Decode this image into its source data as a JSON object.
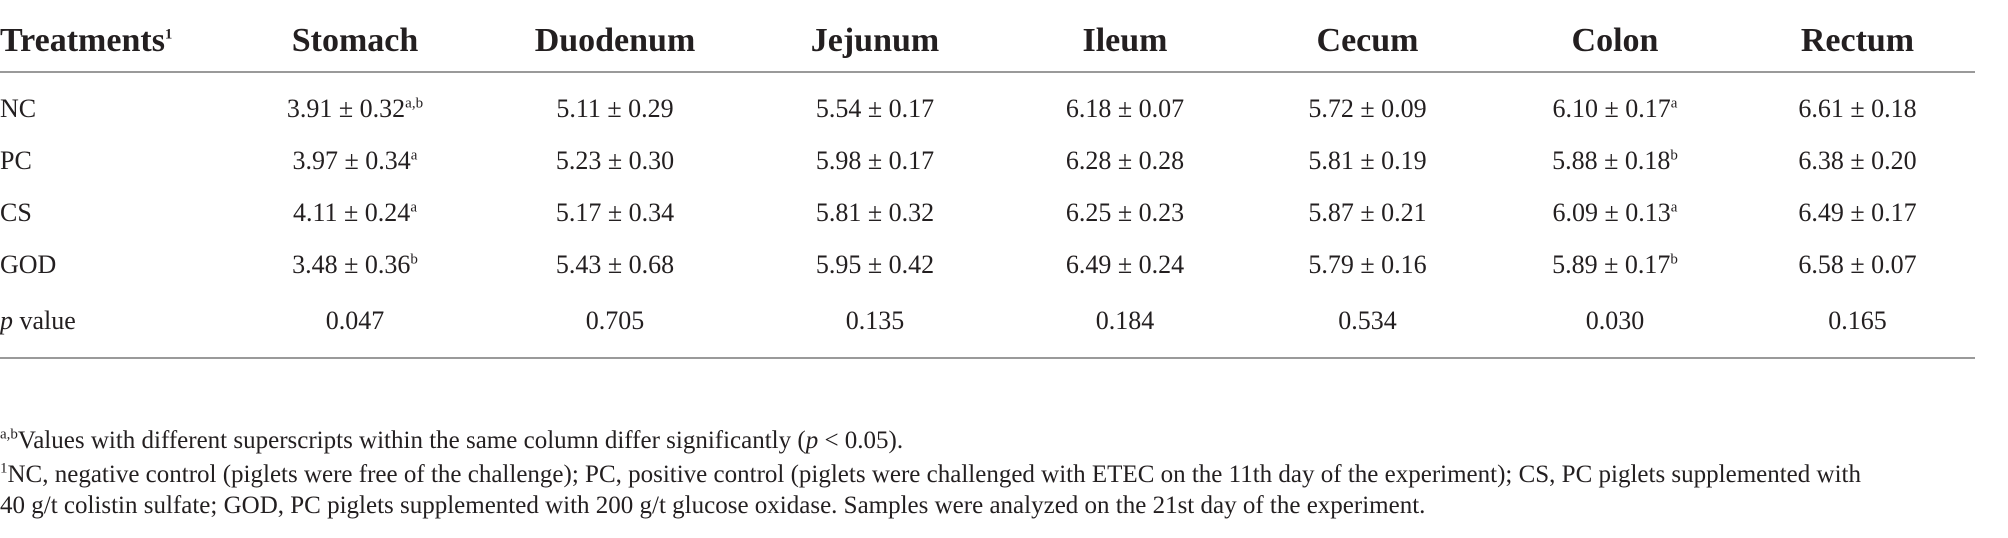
{
  "table": {
    "headers": [
      {
        "text": "Treatments",
        "sup": "1"
      },
      {
        "text": "Stomach",
        "sup": ""
      },
      {
        "text": "Duodenum",
        "sup": ""
      },
      {
        "text": "Jejunum",
        "sup": ""
      },
      {
        "text": "Ileum",
        "sup": ""
      },
      {
        "text": "Cecum",
        "sup": ""
      },
      {
        "text": "Colon",
        "sup": ""
      },
      {
        "text": "Rectum",
        "sup": ""
      }
    ],
    "rows": [
      {
        "label": "NC",
        "label_italic": "",
        "label_rest": "",
        "cells": [
          {
            "v": "3.91 ± 0.32",
            "s": "a,b"
          },
          {
            "v": "5.11 ± 0.29",
            "s": ""
          },
          {
            "v": "5.54 ± 0.17",
            "s": ""
          },
          {
            "v": "6.18 ± 0.07",
            "s": ""
          },
          {
            "v": "5.72 ± 0.09",
            "s": ""
          },
          {
            "v": "6.10 ± 0.17",
            "s": "a"
          },
          {
            "v": "6.61 ± 0.18",
            "s": ""
          }
        ]
      },
      {
        "label": "PC",
        "label_italic": "",
        "label_rest": "",
        "cells": [
          {
            "v": "3.97 ± 0.34",
            "s": "a"
          },
          {
            "v": "5.23 ± 0.30",
            "s": ""
          },
          {
            "v": "5.98 ± 0.17",
            "s": ""
          },
          {
            "v": "6.28 ± 0.28",
            "s": ""
          },
          {
            "v": "5.81 ± 0.19",
            "s": ""
          },
          {
            "v": "5.88 ± 0.18",
            "s": "b"
          },
          {
            "v": "6.38 ± 0.20",
            "s": ""
          }
        ]
      },
      {
        "label": "CS",
        "label_italic": "",
        "label_rest": "",
        "cells": [
          {
            "v": "4.11 ± 0.24",
            "s": "a"
          },
          {
            "v": "5.17 ± 0.34",
            "s": ""
          },
          {
            "v": "5.81 ± 0.32",
            "s": ""
          },
          {
            "v": "6.25 ± 0.23",
            "s": ""
          },
          {
            "v": "5.87 ± 0.21",
            "s": ""
          },
          {
            "v": "6.09 ± 0.13",
            "s": "a"
          },
          {
            "v": "6.49 ± 0.17",
            "s": ""
          }
        ]
      },
      {
        "label": "GOD",
        "label_italic": "",
        "label_rest": "",
        "cells": [
          {
            "v": "3.48 ± 0.36",
            "s": "b"
          },
          {
            "v": "5.43 ± 0.68",
            "s": ""
          },
          {
            "v": "5.95 ± 0.42",
            "s": ""
          },
          {
            "v": "6.49 ± 0.24",
            "s": ""
          },
          {
            "v": "5.79 ± 0.16",
            "s": ""
          },
          {
            "v": "5.89 ± 0.17",
            "s": "b"
          },
          {
            "v": "6.58 ± 0.07",
            "s": ""
          }
        ]
      },
      {
        "label": "",
        "label_italic": "p",
        "label_rest": " value",
        "cells": [
          {
            "v": "0.047",
            "s": ""
          },
          {
            "v": "0.705",
            "s": ""
          },
          {
            "v": "0.135",
            "s": ""
          },
          {
            "v": "0.184",
            "s": ""
          },
          {
            "v": "0.534",
            "s": ""
          },
          {
            "v": "0.030",
            "s": ""
          },
          {
            "v": "0.165",
            "s": ""
          }
        ]
      }
    ]
  },
  "footnotes": {
    "fn1": {
      "sup": "a,b",
      "text_before": "Values with different superscripts within the same column differ significantly (",
      "italic": "p",
      "text_after": " < 0.05)."
    },
    "fn2": {
      "sup": "1",
      "line1": "NC, negative control (piglets were free of the challenge); PC, positive control (piglets were challenged with ETEC on the 11th day of the experiment); CS, PC piglets supplemented with",
      "line2": "40 g/t colistin sulfate; GOD, PC piglets supplemented with 200 g/t glucose oxidase. Samples were analyzed on the 21st day of the experiment."
    }
  }
}
